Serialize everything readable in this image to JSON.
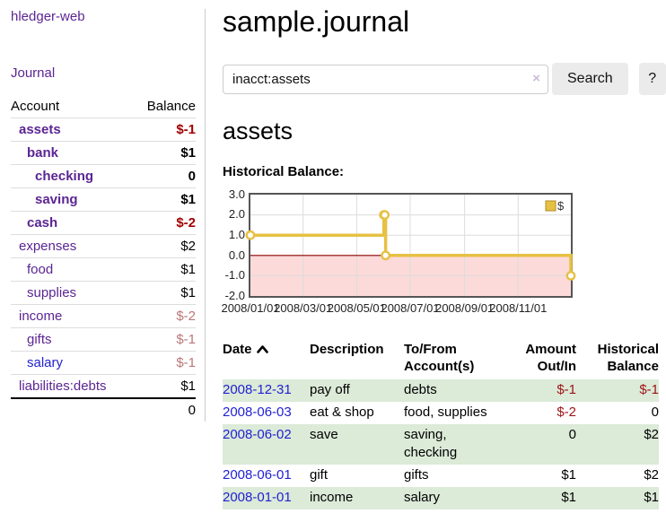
{
  "app": {
    "brand": "hledger-web",
    "nav_journal": "Journal"
  },
  "sidebar": {
    "columns": {
      "account": "Account",
      "balance": "Balance"
    },
    "accounts": [
      {
        "name": "assets",
        "balance": "$-1",
        "level": 1,
        "bold": true
      },
      {
        "name": "bank",
        "balance": "$1",
        "level": 2,
        "bold": true
      },
      {
        "name": "checking",
        "balance": "0",
        "level": 3,
        "bold": true
      },
      {
        "name": "saving",
        "balance": "$1",
        "level": 3,
        "bold": true
      },
      {
        "name": "cash",
        "balance": "$-2",
        "level": 2,
        "bold": true
      },
      {
        "name": "expenses",
        "balance": "$2",
        "level": 1,
        "bold": false
      },
      {
        "name": "food",
        "balance": "$1",
        "level": 2,
        "bold": false
      },
      {
        "name": "supplies",
        "balance": "$1",
        "level": 2,
        "bold": false
      },
      {
        "name": "income",
        "balance": "$-2",
        "level": 1,
        "bold": false
      },
      {
        "name": "gifts",
        "balance": "$-1",
        "level": 2,
        "bold": false
      },
      {
        "name": "salary",
        "balance": "$-1",
        "level": 2,
        "bold": false,
        "blue": true
      },
      {
        "name": "liabilities:debts",
        "balance": "$1",
        "level": 1,
        "bold": false
      }
    ],
    "total": "0"
  },
  "header": {
    "title": "sample.journal"
  },
  "search": {
    "value": "inacct:assets",
    "clear_icon": "×",
    "button_label": "Search",
    "help_label": "?"
  },
  "account_page": {
    "title": "assets",
    "chart_label": "Historical Balance:"
  },
  "chart_data": {
    "type": "line",
    "step": true,
    "title": "Historical Balance",
    "series": [
      {
        "name": "$",
        "points": [
          [
            "2008-01-01",
            1
          ],
          [
            "2008-06-01",
            2
          ],
          [
            "2008-06-02",
            2
          ],
          [
            "2008-06-03",
            0
          ],
          [
            "2008-12-31",
            -1
          ]
        ]
      }
    ],
    "x_range": [
      "2008-01-01",
      "2008-12-31"
    ],
    "ylim": [
      -2.0,
      3.0
    ],
    "yticks": [
      "3.0",
      "2.0",
      "1.0",
      "0.0",
      "-1.0",
      "-2.0"
    ],
    "xticks": [
      "2008/01/01",
      "2008/03/01",
      "2008/05/01",
      "2008/07/01",
      "2008/09/01",
      "2008/11/01"
    ],
    "legend": {
      "label": "$",
      "position": "top-right"
    },
    "grid": true,
    "colors": {
      "line": "#e6c143",
      "legend_border": "#b08d28",
      "negative_fill": "#fcdada",
      "zero_line": "#8b0000",
      "grid": "#dcdcdc"
    }
  },
  "register": {
    "columns": {
      "date": "Date",
      "description": "Description",
      "accounts": "To/From Account(s)",
      "amount": "Amount Out/In",
      "balance": "Historical Balance"
    },
    "rows": [
      {
        "date": "2008-12-31",
        "description": "pay off",
        "accounts": "debts",
        "amount": "$-1",
        "balance": "$-1"
      },
      {
        "date": "2008-06-03",
        "description": "eat & shop",
        "accounts": "food, supplies",
        "amount": "$-2",
        "balance": "0"
      },
      {
        "date": "2008-06-02",
        "description": "save",
        "accounts": "saving, checking",
        "amount": "0",
        "balance": "$2"
      },
      {
        "date": "2008-06-01",
        "description": "gift",
        "accounts": "gifts",
        "amount": "$1",
        "balance": "$2"
      },
      {
        "date": "2008-01-01",
        "description": "income",
        "accounts": "salary",
        "amount": "$1",
        "balance": "$1"
      }
    ]
  },
  "colors": {
    "purple_link": "#5b2593",
    "blue_link": "#2222d2",
    "neg_strong": "#a40000",
    "neg_soft": "#bb7777",
    "stripe_green": "#dcead8"
  }
}
